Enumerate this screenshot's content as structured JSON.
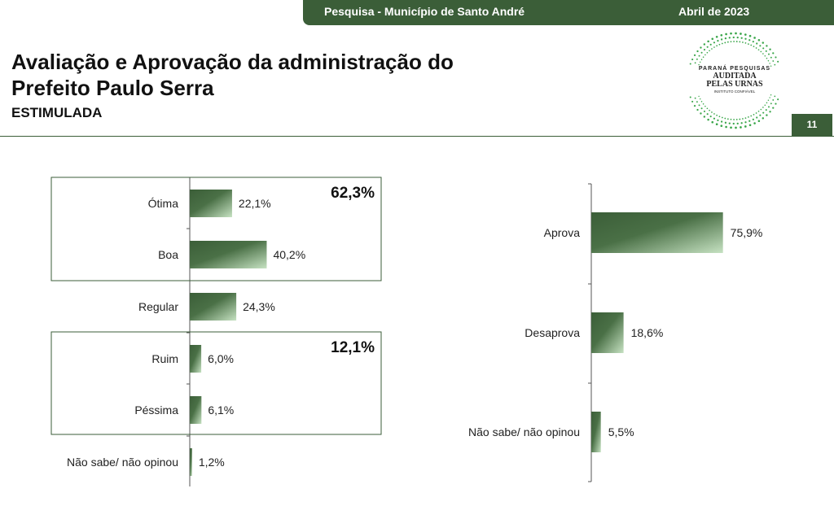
{
  "header": {
    "survey": "Pesquisa - Município de Santo André",
    "date": "Abril de 2023"
  },
  "title": "Avaliação e Aprovação da administração do Prefeito Paulo Serra",
  "subtitle": "ESTIMULADA",
  "page_number": "11",
  "logo": {
    "line1": "PARANÁ PESQUISAS",
    "line2": "AUDITADA",
    "line3": "PELAS URNAS",
    "line4": "INSTITUTO CONFIÁVEL"
  },
  "colors": {
    "brand": "#3b5e38",
    "bar_dark": "#3b5e38",
    "bar_light": "#c6e2c2"
  },
  "chart_data": [
    {
      "type": "bar",
      "orientation": "horizontal",
      "categories": [
        "Ótima",
        "Boa",
        "Regular",
        "Ruim",
        "Péssima",
        "Não sabe/ não opinou"
      ],
      "values": [
        22.1,
        40.2,
        24.3,
        6.0,
        6.1,
        1.2
      ],
      "value_labels": [
        "22,1%",
        "40,2%",
        "24,3%",
        "6,0%",
        "6,1%",
        "1,2%"
      ],
      "groups": [
        {
          "label": "62,3%",
          "categories": [
            "Ótima",
            "Boa"
          ]
        },
        {
          "label": "12,1%",
          "categories": [
            "Ruim",
            "Péssima"
          ]
        }
      ]
    },
    {
      "type": "bar",
      "orientation": "horizontal",
      "categories": [
        "Aprova",
        "Desaprova",
        "Não sabe/ não opinou"
      ],
      "values": [
        75.9,
        18.6,
        5.5
      ],
      "value_labels": [
        "75,9%",
        "18,6%",
        "5,5%"
      ]
    }
  ]
}
